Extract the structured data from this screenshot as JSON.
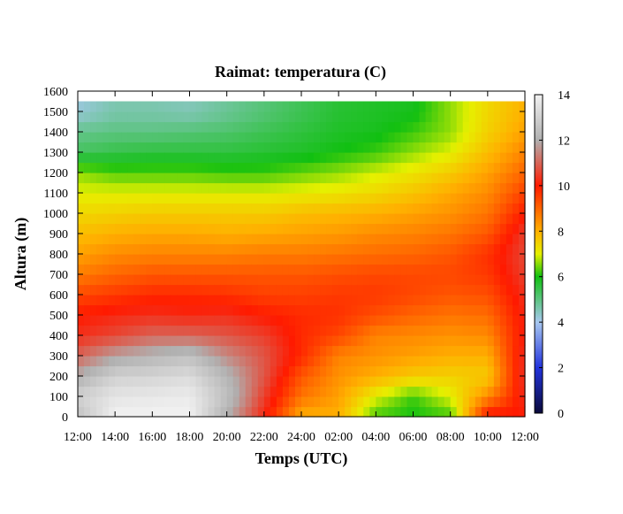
{
  "chart_data": {
    "type": "heatmap",
    "title": "Raimat: temperatura (C)",
    "xlabel": "Temps (UTC)",
    "ylabel": "Altura (m)",
    "x_ticks": [
      "12:00",
      "14:00",
      "16:00",
      "18:00",
      "20:00",
      "22:00",
      "24:00",
      "02:00",
      "04:00",
      "06:00",
      "08:00",
      "10:00",
      "12:00"
    ],
    "y_ticks": [
      0,
      100,
      200,
      300,
      400,
      500,
      600,
      700,
      800,
      900,
      1000,
      1100,
      1200,
      1300,
      1400,
      1500,
      1600
    ],
    "ylim": [
      0,
      1600
    ],
    "x_range_hours": [
      0,
      24
    ],
    "colorbar": {
      "range": [
        0,
        14
      ],
      "ticks": [
        0,
        2,
        4,
        6,
        8,
        10,
        12,
        14
      ],
      "stops": [
        {
          "v": 0,
          "color": "#0a0a3a"
        },
        {
          "v": 2,
          "color": "#2233dd"
        },
        {
          "v": 4,
          "color": "#a8c8f0"
        },
        {
          "v": 6,
          "color": "#11c011"
        },
        {
          "v": 7,
          "color": "#e6f000"
        },
        {
          "v": 8,
          "color": "#ffb000"
        },
        {
          "v": 10,
          "color": "#ff1a00"
        },
        {
          "v": 12,
          "color": "#b0b0b0"
        },
        {
          "v": 14,
          "color": "#f2f2f2"
        }
      ]
    },
    "grid": false,
    "x_hours": [
      0,
      2,
      4,
      6,
      8,
      10,
      12,
      14,
      16,
      18,
      20,
      22,
      24
    ],
    "heights": [
      0,
      100,
      200,
      300,
      400,
      500,
      600,
      700,
      800,
      900,
      1000,
      1100,
      1200,
      1300,
      1400,
      1500,
      1550
    ],
    "values": [
      [
        12.5,
        13.0,
        12.0,
        11.0,
        10.3,
        10.0,
        9.4,
        8.7,
        8.2,
        7.8,
        7.4,
        7.0,
        6.6,
        5.3,
        4.9,
        4.2,
        4.2
      ],
      [
        14.0,
        13.6,
        13.0,
        11.8,
        10.6,
        10.2,
        9.6,
        9.0,
        8.5,
        8.0,
        7.5,
        7.0,
        6.3,
        5.5,
        5.0,
        4.6,
        4.6
      ],
      [
        14.0,
        13.7,
        13.1,
        12.2,
        11.0,
        10.3,
        9.8,
        9.2,
        8.6,
        8.1,
        7.6,
        7.0,
        6.3,
        5.6,
        5.0,
        4.6,
        4.6
      ],
      [
        14.0,
        13.8,
        13.3,
        12.5,
        11.0,
        10.2,
        9.8,
        9.2,
        8.6,
        8.1,
        7.6,
        7.0,
        6.3,
        5.6,
        5.1,
        4.5,
        4.5
      ],
      [
        12.0,
        12.5,
        12.2,
        11.5,
        10.8,
        10.3,
        9.7,
        9.2,
        8.6,
        8.0,
        7.6,
        7.0,
        6.2,
        5.6,
        5.2,
        4.8,
        4.8
      ],
      [
        10.2,
        10.5,
        10.8,
        10.8,
        10.5,
        10.0,
        9.5,
        9.2,
        8.7,
        8.1,
        7.6,
        7.0,
        6.2,
        5.7,
        5.4,
        5.1,
        5.1
      ],
      [
        8.0,
        8.8,
        9.2,
        9.8,
        9.8,
        9.8,
        9.5,
        9.2,
        8.7,
        8.2,
        7.8,
        7.1,
        6.4,
        5.8,
        5.6,
        5.4,
        5.4
      ],
      [
        8.0,
        8.2,
        8.4,
        8.6,
        9.4,
        9.7,
        9.6,
        9.3,
        8.8,
        8.3,
        7.9,
        7.2,
        6.6,
        6.0,
        5.8,
        5.7,
        5.7
      ],
      [
        6.2,
        7.0,
        8.0,
        8.4,
        8.6,
        9.3,
        9.6,
        9.4,
        8.9,
        8.5,
        8.0,
        7.4,
        6.9,
        6.2,
        5.9,
        5.8,
        5.8
      ],
      [
        6.0,
        6.2,
        7.6,
        8.2,
        8.5,
        9.0,
        9.4,
        9.4,
        9.0,
        8.6,
        8.2,
        7.7,
        7.2,
        6.6,
        6.2,
        5.9,
        5.9
      ],
      [
        6.2,
        7.0,
        7.5,
        8.0,
        8.4,
        8.8,
        9.2,
        9.4,
        9.2,
        8.8,
        8.4,
        8.1,
        7.6,
        7.0,
        6.6,
        6.6,
        6.6
      ],
      [
        10.2,
        8.5,
        7.6,
        8.0,
        8.5,
        8.9,
        9.3,
        9.6,
        9.7,
        9.2,
        8.8,
        8.5,
        8.2,
        7.8,
        7.5,
        7.4,
        7.4
      ],
      [
        10.0,
        10.3,
        10.5,
        10.4,
        10.2,
        10.2,
        10.3,
        10.5,
        10.6,
        10.5,
        10.0,
        9.5,
        9.0,
        8.6,
        8.2,
        8.0,
        8.0
      ]
    ]
  }
}
